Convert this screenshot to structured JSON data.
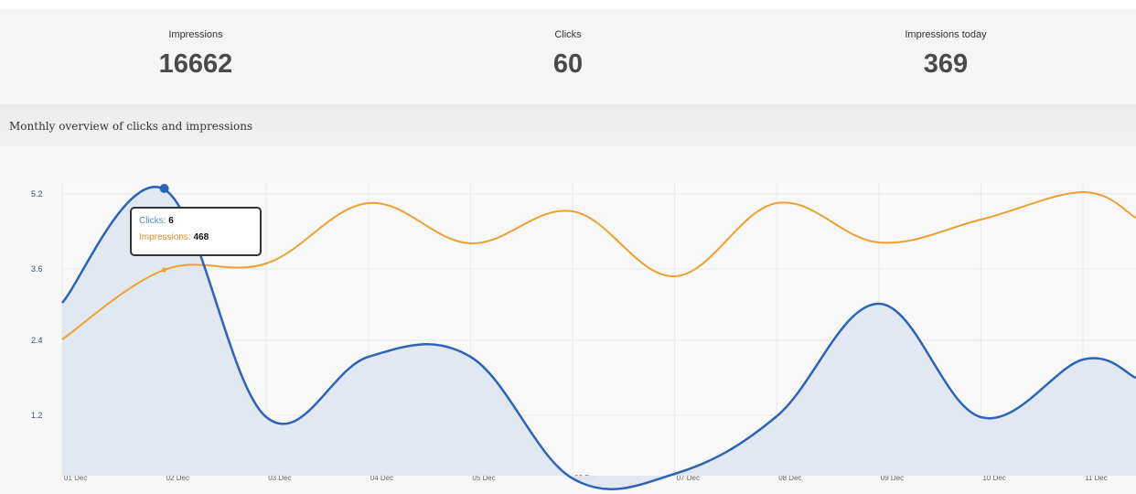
{
  "stats": [
    {
      "label": "Impressions",
      "value": "16662"
    },
    {
      "label": "Clicks",
      "value": "60"
    },
    {
      "label": "Impressions today",
      "value": "369"
    }
  ],
  "section": {
    "title": "Monthly overview of clicks and impressions"
  },
  "tooltip": {
    "clicks_label": "Clicks:",
    "clicks_value": "6",
    "impressions_label": "Impressions:",
    "impressions_value": "468"
  },
  "colors": {
    "clicks": "#2c64b8",
    "impressions": "#f0a030",
    "clicks_fill": "#dfe6f0"
  },
  "chart_data": {
    "type": "line",
    "categories": [
      "01 Dec",
      "02 Dec",
      "03 Dec",
      "04 Dec",
      "05 Dec",
      "06 Dec",
      "07 Dec",
      "08 Dec",
      "09 Dec",
      "10 Dec",
      "11 Dec"
    ],
    "y_ticks": [
      "1.2",
      "2.4",
      "3.6",
      "5.2"
    ],
    "series": [
      {
        "name": "Clicks",
        "values": [
          3.0,
          5.2,
          1.2,
          2.4,
          2.3,
          0.0,
          0.1,
          1.2,
          3.0,
          1.2,
          2.0
        ]
      },
      {
        "name": "Impressions",
        "values": [
          2.4,
          3.6,
          3.7,
          4.8,
          4.2,
          4.7,
          3.5,
          4.8,
          4.2,
          4.5,
          5.1
        ]
      }
    ],
    "grid": true
  }
}
